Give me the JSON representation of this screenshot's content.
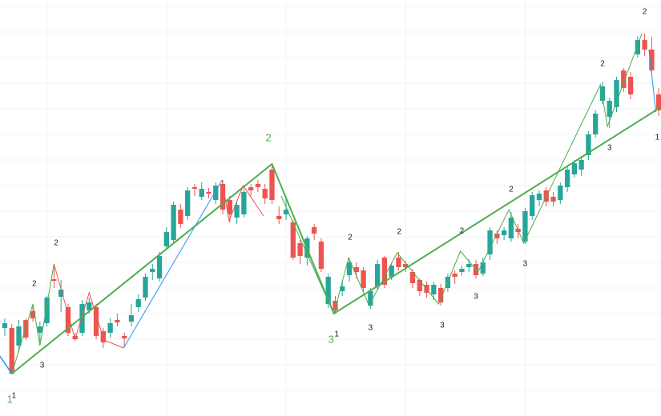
{
  "chart_data": {
    "type": "candlestick",
    "xlim": [
      -0.68,
      93.32
    ],
    "ylim": [
      0,
      520
    ],
    "xticks": [
      6,
      23,
      40,
      57,
      74
    ],
    "yticks": [
      32,
      64,
      96,
      128,
      160,
      192,
      224,
      256,
      288,
      320,
      352,
      384,
      416,
      448,
      480,
      512
    ],
    "grid": true,
    "up_color": "#26a69a",
    "down_color": "#ef5350",
    "candles": [
      [
        110,
        122,
        100,
        116
      ],
      [
        110,
        115,
        52,
        53
      ],
      [
        88,
        120,
        80,
        112
      ],
      [
        120,
        122,
        95,
        98
      ],
      [
        131,
        140,
        118,
        122
      ],
      [
        104,
        118,
        90,
        112
      ],
      [
        116,
        150,
        112,
        148
      ],
      [
        171,
        190,
        160,
        169
      ],
      [
        149,
        170,
        130,
        158
      ],
      [
        136,
        140,
        100,
        104
      ],
      [
        100,
        104,
        94,
        96
      ],
      [
        104,
        145,
        100,
        140
      ],
      [
        132,
        148,
        128,
        142
      ],
      [
        136,
        140,
        96,
        100
      ],
      [
        106,
        110,
        85,
        92
      ],
      [
        104,
        122,
        98,
        116
      ],
      [
        120,
        128,
        112,
        117
      ],
      [
        100,
        104,
        86,
        97
      ],
      [
        118,
        140,
        112,
        126
      ],
      [
        136,
        152,
        130,
        146
      ],
      [
        148,
        178,
        144,
        174
      ],
      [
        180,
        190,
        170,
        184
      ],
      [
        172,
        205,
        168,
        200
      ],
      [
        212,
        236,
        208,
        230
      ],
      [
        220,
        268,
        215,
        264
      ],
      [
        258,
        265,
        235,
        240
      ],
      [
        250,
        286,
        245,
        282
      ],
      [
        286,
        290,
        275,
        284
      ],
      [
        274,
        292,
        270,
        284
      ],
      [
        280,
        285,
        272,
        278
      ],
      [
        270,
        292,
        265,
        288
      ],
      [
        290,
        295,
        252,
        258
      ],
      [
        270,
        275,
        242,
        252
      ],
      [
        248,
        268,
        240,
        264
      ],
      [
        252,
        284,
        248,
        280
      ],
      [
        286,
        290,
        275,
        282
      ],
      [
        290,
        295,
        280,
        286
      ],
      [
        284,
        290,
        265,
        272
      ],
      [
        308,
        312,
        265,
        270
      ],
      [
        250,
        262,
        240,
        246
      ],
      [
        252,
        275,
        245,
        258
      ],
      [
        242,
        245,
        195,
        198
      ],
      [
        216,
        220,
        190,
        200
      ],
      [
        198,
        225,
        188,
        222
      ],
      [
        236,
        240,
        220,
        228
      ],
      [
        218,
        222,
        180,
        184
      ],
      [
        140,
        178,
        135,
        174
      ],
      [
        144,
        150,
        128,
        132
      ],
      [
        156,
        170,
        150,
        162
      ],
      [
        176,
        198,
        168,
        192
      ],
      [
        186,
        192,
        172,
        180
      ],
      [
        182,
        186,
        155,
        160
      ],
      [
        138,
        160,
        134,
        156
      ],
      [
        162,
        195,
        158,
        190
      ],
      [
        198,
        200,
        160,
        164
      ],
      [
        174,
        192,
        170,
        188
      ],
      [
        198,
        205,
        182,
        186
      ],
      [
        190,
        194,
        180,
        186
      ],
      [
        180,
        184,
        160,
        166
      ],
      [
        170,
        172,
        150,
        156
      ],
      [
        164,
        168,
        148,
        154
      ],
      [
        152,
        168,
        145,
        164
      ],
      [
        160,
        165,
        138,
        142
      ],
      [
        160,
        178,
        155,
        174
      ],
      [
        178,
        182,
        165,
        174
      ],
      [
        180,
        188,
        175,
        184
      ],
      [
        186,
        196,
        180,
        190
      ],
      [
        190,
        195,
        172,
        176
      ],
      [
        178,
        198,
        175,
        192
      ],
      [
        202,
        236,
        195,
        232
      ],
      [
        228,
        232,
        215,
        222
      ],
      [
        226,
        236,
        220,
        232
      ],
      [
        222,
        255,
        218,
        248
      ],
      [
        234,
        240,
        222,
        230
      ],
      [
        218,
        260,
        215,
        256
      ],
      [
        250,
        280,
        245,
        276
      ],
      [
        270,
        282,
        262,
        278
      ],
      [
        282,
        286,
        262,
        268
      ],
      [
        274,
        280,
        262,
        268
      ],
      [
        270,
        292,
        265,
        288
      ],
      [
        286,
        312,
        280,
        308
      ],
      [
        302,
        320,
        298,
        316
      ],
      [
        308,
        325,
        300,
        320
      ],
      [
        326,
        356,
        320,
        352
      ],
      [
        352,
        382,
        348,
        378
      ],
      [
        394,
        418,
        390,
        412
      ],
      [
        374,
        398,
        360,
        394
      ],
      [
        386,
        424,
        380,
        420
      ],
      [
        432,
        435,
        405,
        410
      ],
      [
        424,
        430,
        396,
        402
      ],
      [
        452,
        475,
        448,
        470
      ],
      [
        470,
        478,
        450,
        458
      ],
      [
        458,
        474,
        428,
        432
      ],
      [
        402,
        410,
        375,
        382
      ]
    ],
    "lines": [
      {
        "color": "#4caf50",
        "width": 2,
        "x": [
          1,
          38,
          46.8,
          93.1
        ],
        "values": [
          53,
          315,
          128,
          385
        ]
      },
      {
        "color": "#4caf50",
        "width": 1,
        "x": [
          1,
          4,
          5,
          7
        ],
        "values": [
          53,
          140,
          88,
          190
        ]
      },
      {
        "color": "#4caf50",
        "width": 1,
        "x": [
          39.3,
          46.8,
          48.9,
          51.8,
          55.8,
          61.7,
          64.8,
          67.3,
          71.7,
          73.8,
          84.7,
          85.7,
          90.6
        ],
        "values": [
          275,
          128,
          198,
          138,
          204,
          140,
          206,
          180,
          258,
          216,
          414,
          362,
          478
        ]
      },
      {
        "color": "#ef5350",
        "width": 1,
        "x": [
          7,
          10,
          12,
          14.1,
          16.9
        ],
        "values": [
          190,
          96,
          154,
          95,
          85
        ]
      },
      {
        "color": "#ef5350",
        "width": 1,
        "x": [
          30.9,
          31.9,
          33.9,
          36.8
        ],
        "values": [
          295,
          244,
          288,
          250
        ]
      },
      {
        "color": "#2196f3",
        "width": 1.5,
        "x": [
          -0.7,
          1
        ],
        "values": [
          75,
          53
        ]
      },
      {
        "color": "#2196f3",
        "width": 1,
        "x": [
          16.9,
          30.9
        ],
        "values": [
          85,
          295
        ]
      },
      {
        "color": "#2196f3",
        "width": 1,
        "x": [
          91.6,
          92.6
        ],
        "values": [
          458,
          380
        ]
      }
    ],
    "annotations": [
      {
        "text": "1",
        "x": 0.7,
        "y": 20,
        "color": "#4caf50"
      },
      {
        "text": "1",
        "x": 1.3,
        "y": 25,
        "color": "#222222"
      },
      {
        "text": "3",
        "x": 5.3,
        "y": 63,
        "color": "#222222"
      },
      {
        "text": "2",
        "x": 4.2,
        "y": 165,
        "color": "#222222"
      },
      {
        "text": "2",
        "x": 7.3,
        "y": 216,
        "color": "#222222"
      },
      {
        "text": "2",
        "x": 37.5,
        "y": 347,
        "color": "#4caf50"
      },
      {
        "text": "3",
        "x": 46.4,
        "y": 95,
        "color": "#4caf50"
      },
      {
        "text": "1",
        "x": 47.2,
        "y": 102,
        "color": "#222222"
      },
      {
        "text": "3",
        "x": 52.0,
        "y": 110,
        "color": "#222222"
      },
      {
        "text": "3",
        "x": 62.2,
        "y": 113,
        "color": "#222222"
      },
      {
        "text": "3",
        "x": 67.0,
        "y": 149,
        "color": "#222222"
      },
      {
        "text": "3",
        "x": 74.0,
        "y": 190,
        "color": "#222222"
      },
      {
        "text": "3",
        "x": 86.0,
        "y": 335,
        "color": "#222222"
      },
      {
        "text": "2",
        "x": 49.1,
        "y": 223,
        "color": "#222222"
      },
      {
        "text": "2",
        "x": 56.1,
        "y": 230,
        "color": "#222222"
      },
      {
        "text": "2",
        "x": 65.0,
        "y": 231,
        "color": "#222222"
      },
      {
        "text": "2",
        "x": 72.0,
        "y": 283,
        "color": "#222222"
      },
      {
        "text": "2",
        "x": 85.0,
        "y": 440,
        "color": "#222222"
      },
      {
        "text": "2",
        "x": 91.0,
        "y": 505,
        "color": "#222222"
      },
      {
        "text": "1",
        "x": 92.8,
        "y": 348,
        "color": "#222222"
      }
    ]
  }
}
